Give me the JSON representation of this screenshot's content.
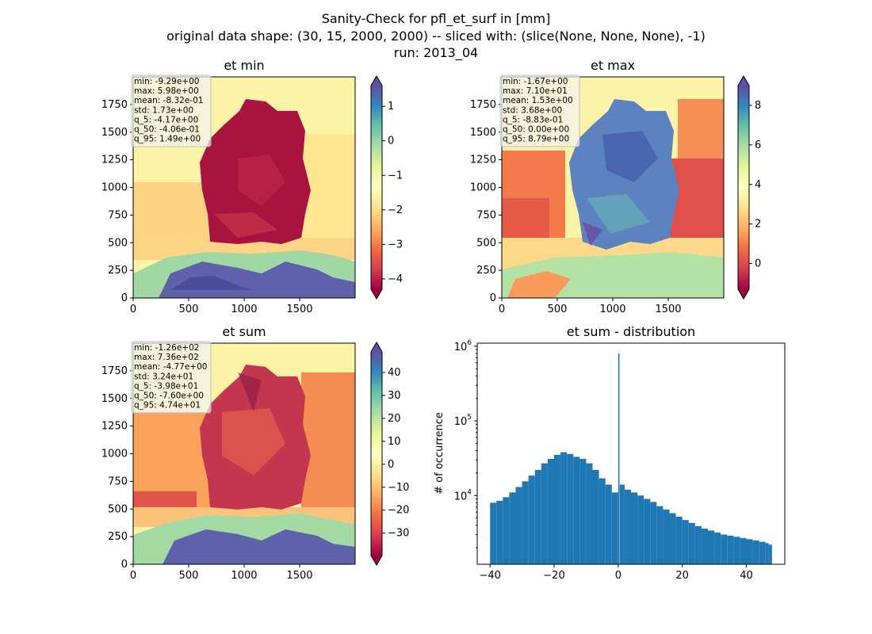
{
  "figure": {
    "title_lines": [
      "Sanity-Check for pfl_et_surf in [mm]",
      "original data shape: (30, 15, 2000, 2000) -- sliced with: (slice(None, None, None), -1)",
      "run: 2013_04"
    ]
  },
  "chart_data": [
    {
      "type": "heatmap",
      "title": "et min",
      "xlim": [
        0,
        2000
      ],
      "ylim": [
        0,
        2000
      ],
      "x_ticks": [
        0,
        500,
        1000,
        1500
      ],
      "y_ticks": [
        0,
        250,
        500,
        750,
        1000,
        1250,
        1500,
        1750
      ],
      "colormap": "Spectral",
      "colorbar": {
        "range": [
          -4.3,
          1.6
        ],
        "ticks": [
          1,
          0,
          -1,
          -2,
          -3,
          -4
        ],
        "extend": "both"
      },
      "stats": [
        "min: -9.29e+00",
        "max: 5.98e+00",
        "mean: -8.32e-01",
        "std: 1.73e+00",
        "q_5: -4.17e+00",
        "q_50: -4.06e-01",
        "q_95: 1.49e+00"
      ]
    },
    {
      "type": "heatmap",
      "title": "et max",
      "xlim": [
        0,
        2000
      ],
      "ylim": [
        0,
        2000
      ],
      "x_ticks": [
        0,
        500,
        1000,
        1500
      ],
      "y_ticks": [
        0,
        250,
        500,
        750,
        1000,
        1250,
        1500,
        1750
      ],
      "colormap": "Spectral",
      "colorbar": {
        "range": [
          -1.3,
          9.0
        ],
        "ticks": [
          8,
          6,
          4,
          2,
          0
        ],
        "extend": "both"
      },
      "stats": [
        "min: -1.67e+00",
        "max: 7.10e+01",
        "mean: 1.53e+00",
        "std: 3.68e+00",
        "q_5: -8.83e-01",
        "q_50: 0.00e+00",
        "q_95: 8.79e+00"
      ]
    },
    {
      "type": "heatmap",
      "title": "et sum",
      "xlim": [
        0,
        2000
      ],
      "ylim": [
        0,
        2000
      ],
      "x_ticks": [
        0,
        500,
        1000,
        1500
      ],
      "y_ticks": [
        0,
        250,
        500,
        750,
        1000,
        1250,
        1500,
        1750
      ],
      "colormap": "Spectral",
      "colorbar": {
        "range": [
          -39.8,
          49.0
        ],
        "ticks": [
          40,
          30,
          20,
          10,
          0,
          -10,
          -20,
          -30
        ],
        "extend": "both"
      },
      "stats": [
        "min: -1.26e+02",
        "max: 7.36e+02",
        "mean: -4.77e+00",
        "std: 3.24e+01",
        "q_5: -3.98e+01",
        "q_50: -7.60e+00",
        "q_95: 4.74e+01"
      ]
    },
    {
      "type": "bar",
      "title": "et sum - distribution",
      "ylabel": "# of occurrence",
      "yscale": "log",
      "xlim": [
        -44,
        52
      ],
      "ylim": [
        1200,
        1100000
      ],
      "x_ticks": [
        -40,
        -20,
        0,
        20,
        40
      ],
      "y_ticks": [
        {
          "value": 10000,
          "label": "10^4"
        },
        {
          "value": 100000,
          "label": "10^5"
        },
        {
          "value": 1000000,
          "label": "10^6"
        }
      ],
      "bar_color": "#1f77b4",
      "bins": {
        "x": [
          -40,
          -38,
          -36,
          -34,
          -32,
          -30,
          -28,
          -26,
          -24,
          -22,
          -20,
          -18,
          -16,
          -14,
          -12,
          -10,
          -8,
          -6,
          -4,
          -2,
          0,
          0.5,
          2,
          4,
          6,
          8,
          10,
          12,
          14,
          16,
          18,
          20,
          22,
          24,
          26,
          28,
          30,
          32,
          34,
          36,
          38,
          40,
          42,
          44,
          46,
          47
        ],
        "counts": [
          8000,
          8500,
          9500,
          11000,
          13000,
          15500,
          18500,
          22000,
          27000,
          31000,
          35000,
          38000,
          36000,
          33000,
          31000,
          27000,
          22000,
          17000,
          14000,
          11000,
          800000,
          14000,
          12000,
          11000,
          10000,
          9000,
          8200,
          7200,
          6500,
          5800,
          5200,
          4700,
          4300,
          3900,
          3600,
          3400,
          3200,
          3000,
          2900,
          2800,
          2700,
          2600,
          2500,
          2400,
          2300,
          2200
        ]
      }
    }
  ]
}
